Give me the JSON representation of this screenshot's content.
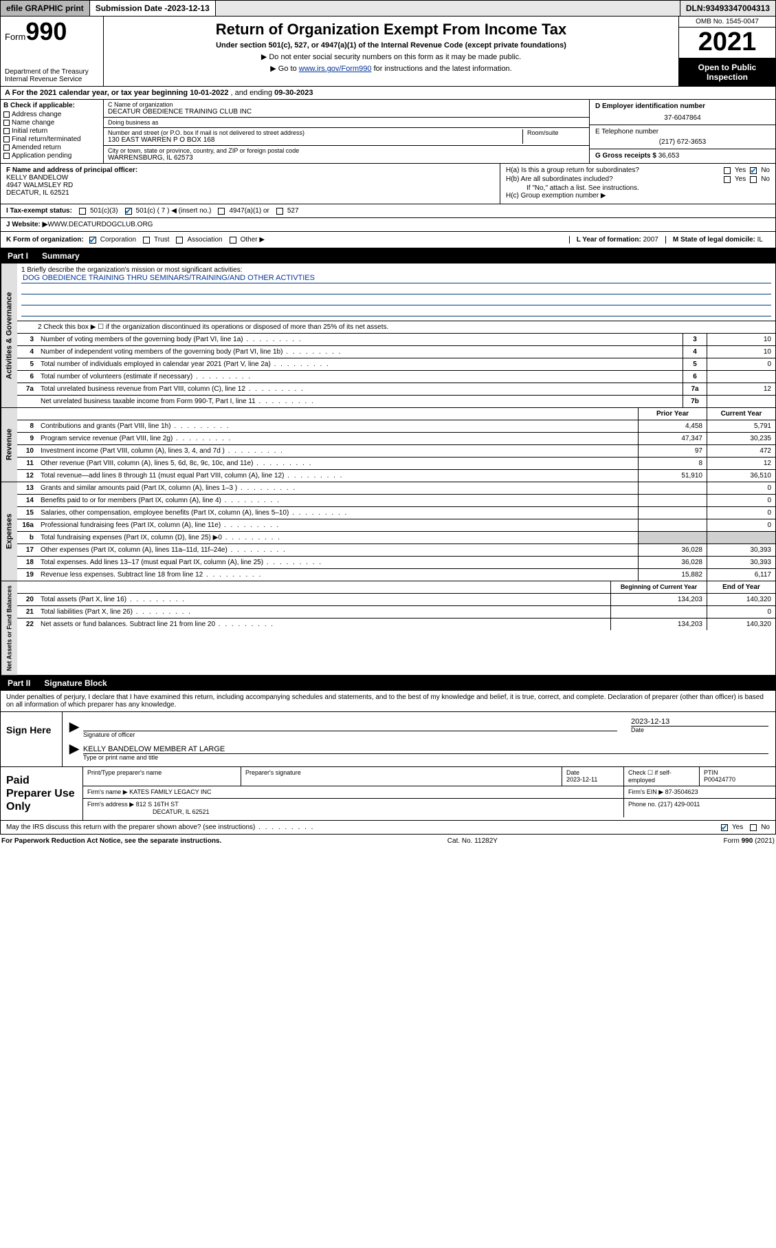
{
  "topbar": {
    "efile": "efile GRAPHIC print",
    "submission_label": "Submission Date - ",
    "submission_date": "2023-12-13",
    "dln_label": "DLN: ",
    "dln": "93493347004313"
  },
  "header": {
    "form_prefix": "Form",
    "form_number": "990",
    "dept": "Department of the Treasury\nInternal Revenue Service",
    "title": "Return of Organization Exempt From Income Tax",
    "subtitle": "Under section 501(c), 527, or 4947(a)(1) of the Internal Revenue Code (except private foundations)",
    "note1": "▶ Do not enter social security numbers on this form as it may be made public.",
    "note2_a": "▶ Go to ",
    "note2_link": "www.irs.gov/Form990",
    "note2_b": " for instructions and the latest information.",
    "omb": "OMB No. 1545-0047",
    "year": "2021",
    "open": "Open to Public Inspection"
  },
  "row_a": {
    "prefix": "A For the 2021 calendar year, or tax year beginning ",
    "begin": "10-01-2022",
    "mid": " , and ending ",
    "end": "09-30-2023"
  },
  "box_b": {
    "label": "B Check if applicable:",
    "items": [
      "Address change",
      "Name change",
      "Initial return",
      "Final return/terminated",
      "Amended return",
      "Application pending"
    ]
  },
  "box_c": {
    "name_label": "C Name of organization",
    "name": "DECATUR OBEDIENCE TRAINING CLUB INC",
    "dba_label": "Doing business as",
    "dba": "",
    "street_label": "Number and street (or P.O. box if mail is not delivered to street address)",
    "room_label": "Room/suite",
    "street": "130 EAST WARREN P O BOX 168",
    "city_label": "City or town, state or province, country, and ZIP or foreign postal code",
    "city": "WARRENSBURG, IL  62573"
  },
  "box_d": {
    "label": "D Employer identification number",
    "value": "37-6047864"
  },
  "box_e": {
    "label": "E Telephone number",
    "value": "(217) 672-3653"
  },
  "box_g": {
    "label": "G Gross receipts $ ",
    "value": "36,653"
  },
  "box_f": {
    "label": "F Name and address of principal officer:",
    "name": "KELLY BANDELOW",
    "addr1": "4947 WALMSLEY RD",
    "addr2": "DECATUR, IL  62521"
  },
  "box_h": {
    "ha_label": "H(a)  Is this a group return for subordinates?",
    "ha_yes": false,
    "ha_no": true,
    "hb_label": "H(b)  Are all subordinates included?",
    "hb_note": "If \"No,\" attach a list. See instructions.",
    "hc_label": "H(c)  Group exemption number ▶",
    "hc_value": ""
  },
  "row_i": {
    "label": "I  Tax-exempt status:",
    "c3": "501(c)(3)",
    "c": "501(c) ( 7 ) ◀ (insert no.)",
    "c_checked": true,
    "a1": "4947(a)(1) or",
    "s527": "527"
  },
  "row_j": {
    "label": "J  Website: ▶ ",
    "value": "WWW.DECATURDOGCLUB.ORG"
  },
  "row_k": {
    "label": "K Form of organization:",
    "corp": "Corporation",
    "corp_checked": true,
    "trust": "Trust",
    "assoc": "Association",
    "other": "Other ▶",
    "l_label": "L Year of formation: ",
    "l_value": "2007",
    "m_label": "M State of legal domicile: ",
    "m_value": "IL"
  },
  "parts": {
    "p1": {
      "no": "Part I",
      "title": "Summary"
    },
    "p2": {
      "no": "Part II",
      "title": "Signature Block"
    }
  },
  "summary": {
    "tabs": [
      "Activities & Governance",
      "Revenue",
      "Expenses",
      "Net Assets or Fund Balances"
    ],
    "line1": {
      "label": "1  Briefly describe the organization's mission or most significant activities:",
      "text": "DOG OBEDIENCE TRAINING THRU SEMINARS/TRAINING/AND OTHER ACTIVTIES"
    },
    "line2": "2   Check this box ▶ ☐  if the organization discontinued its operations or disposed of more than 25% of its net assets.",
    "rows_gov": [
      {
        "n": "3",
        "d": "Number of voting members of the governing body (Part VI, line 1a)",
        "k": "3",
        "v": "10"
      },
      {
        "n": "4",
        "d": "Number of independent voting members of the governing body (Part VI, line 1b)",
        "k": "4",
        "v": "10"
      },
      {
        "n": "5",
        "d": "Total number of individuals employed in calendar year 2021 (Part V, line 2a)",
        "k": "5",
        "v": "0"
      },
      {
        "n": "6",
        "d": "Total number of volunteers (estimate if necessary)",
        "k": "6",
        "v": ""
      },
      {
        "n": "7a",
        "d": "Total unrelated business revenue from Part VIII, column (C), line 12",
        "k": "7a",
        "v": "12"
      },
      {
        "n": "",
        "d": "Net unrelated business taxable income from Form 990-T, Part I, line 11",
        "k": "7b",
        "v": ""
      }
    ],
    "col_heads": {
      "prior": "Prior Year",
      "current": "Current Year",
      "boy": "Beginning of Current Year",
      "eoy": "End of Year"
    },
    "rows_rev": [
      {
        "n": "8",
        "d": "Contributions and grants (Part VIII, line 1h)",
        "p": "4,458",
        "c": "5,791"
      },
      {
        "n": "9",
        "d": "Program service revenue (Part VIII, line 2g)",
        "p": "47,347",
        "c": "30,235"
      },
      {
        "n": "10",
        "d": "Investment income (Part VIII, column (A), lines 3, 4, and 7d )",
        "p": "97",
        "c": "472"
      },
      {
        "n": "11",
        "d": "Other revenue (Part VIII, column (A), lines 5, 6d, 8c, 9c, 10c, and 11e)",
        "p": "8",
        "c": "12"
      },
      {
        "n": "12",
        "d": "Total revenue—add lines 8 through 11 (must equal Part VIII, column (A), line 12)",
        "p": "51,910",
        "c": "36,510"
      }
    ],
    "rows_exp": [
      {
        "n": "13",
        "d": "Grants and similar amounts paid (Part IX, column (A), lines 1–3 )",
        "p": "",
        "c": "0"
      },
      {
        "n": "14",
        "d": "Benefits paid to or for members (Part IX, column (A), line 4)",
        "p": "",
        "c": "0"
      },
      {
        "n": "15",
        "d": "Salaries, other compensation, employee benefits (Part IX, column (A), lines 5–10)",
        "p": "",
        "c": "0"
      },
      {
        "n": "16a",
        "d": "Professional fundraising fees (Part IX, column (A), line 11e)",
        "p": "",
        "c": "0"
      },
      {
        "n": "b",
        "d": "Total fundraising expenses (Part IX, column (D), line 25) ▶0",
        "p": "SHADE",
        "c": "SHADE"
      },
      {
        "n": "17",
        "d": "Other expenses (Part IX, column (A), lines 11a–11d, 11f–24e)",
        "p": "36,028",
        "c": "30,393"
      },
      {
        "n": "18",
        "d": "Total expenses. Add lines 13–17 (must equal Part IX, column (A), line 25)",
        "p": "36,028",
        "c": "30,393"
      },
      {
        "n": "19",
        "d": "Revenue less expenses. Subtract line 18 from line 12",
        "p": "15,882",
        "c": "6,117"
      }
    ],
    "rows_net": [
      {
        "n": "20",
        "d": "Total assets (Part X, line 16)",
        "p": "134,203",
        "c": "140,320"
      },
      {
        "n": "21",
        "d": "Total liabilities (Part X, line 26)",
        "p": "",
        "c": "0"
      },
      {
        "n": "22",
        "d": "Net assets or fund balances. Subtract line 21 from line 20",
        "p": "134,203",
        "c": "140,320"
      }
    ]
  },
  "declaration": "Under penalties of perjury, I declare that I have examined this return, including accompanying schedules and statements, and to the best of my knowledge and belief, it is true, correct, and complete. Declaration of preparer (other than officer) is based on all information of which preparer has any knowledge.",
  "sign": {
    "label": "Sign Here",
    "sig_label": "Signature of officer",
    "date_label": "Date",
    "date": "2023-12-13",
    "name_title": "KELLY BANDELOW  MEMBER AT LARGE",
    "name_label": "Type or print name and title"
  },
  "paid": {
    "label": "Paid Preparer Use Only",
    "h_name": "Print/Type preparer's name",
    "h_sig": "Preparer's signature",
    "h_date": "Date",
    "date": "2023-12-11",
    "check_label": "Check ☐ if self-employed",
    "ptin_label": "PTIN",
    "ptin": "P00424770",
    "firm_name_label": "Firm's name    ▶ ",
    "firm_name": "KATES FAMILY LEGACY INC",
    "firm_ein_label": "Firm's EIN ▶ ",
    "firm_ein": "87-3504623",
    "firm_addr_label": "Firm's address ▶ ",
    "firm_addr1": "812 S 16TH ST",
    "firm_addr2": "DECATUR, IL  62521",
    "phone_label": "Phone no. ",
    "phone": "(217) 429-0011"
  },
  "may_irs": {
    "text": "May the IRS discuss this return with the preparer shown above? (see instructions)",
    "yes_checked": true
  },
  "footer": {
    "left": "For Paperwork Reduction Act Notice, see the separate instructions.",
    "mid": "Cat. No. 11282Y",
    "right_a": "Form ",
    "right_b": "990",
    "right_c": " (2021)"
  },
  "colors": {
    "link": "#003399",
    "check": "#0070c0",
    "shade": "#d0d0d0",
    "tab": "#e0e0e0"
  }
}
